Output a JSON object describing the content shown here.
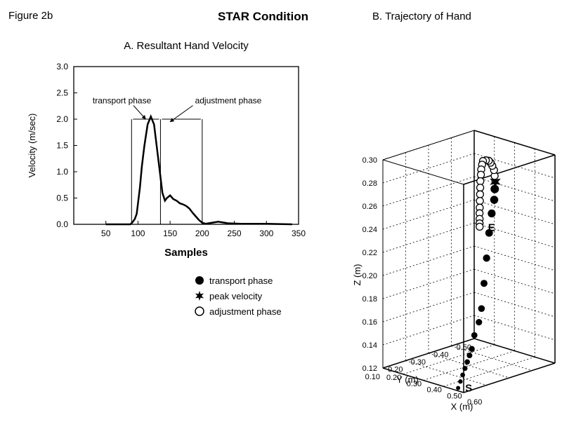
{
  "figure_label": "Figure 2b",
  "main_title": "STAR Condition",
  "panelA": {
    "type": "line",
    "title": "A. Resultant Hand Velocity",
    "title_fontsize": 15,
    "xlabel": "Samples",
    "ylabel": "Velocity (m/sec)",
    "label_fontsize": 13,
    "tick_fontsize": 12,
    "xlim": [
      0,
      350
    ],
    "ylim": [
      0,
      3.0
    ],
    "xtick_step": 50,
    "ytick_step": 0.5,
    "line_color": "#000000",
    "line_width": 2.5,
    "background_color": "#ffffff",
    "axis_color": "#000000",
    "phase_lines_x": [
      90,
      135,
      200
    ],
    "phase_line_color": "#000000",
    "phase_line_width": 1,
    "annotations": {
      "transport": {
        "text": "transport phase",
        "x_text": 75,
        "y_text": 2.3,
        "arrow_to_x": 112,
        "arrow_to_y": 2.0
      },
      "adjustment": {
        "text": "adjustment phase",
        "x_text": 180,
        "y_text": 2.3,
        "arrow_to_x": 150,
        "arrow_to_y": 1.95
      }
    },
    "samples_x": [
      50,
      70,
      80,
      85,
      88,
      90,
      92,
      95,
      98,
      100,
      103,
      106,
      110,
      115,
      120,
      125,
      128,
      132,
      135,
      138,
      142,
      145,
      150,
      155,
      160,
      165,
      170,
      175,
      180,
      185,
      190,
      195,
      200,
      205,
      210,
      215,
      220,
      225,
      230,
      240,
      260,
      280,
      300,
      320,
      340
    ],
    "velocity_y": [
      0,
      0,
      0,
      0,
      0,
      0.02,
      0.05,
      0.1,
      0.2,
      0.4,
      0.7,
      1.1,
      1.5,
      1.9,
      2.05,
      1.9,
      1.6,
      1.2,
      0.9,
      0.6,
      0.45,
      0.5,
      0.55,
      0.48,
      0.45,
      0.4,
      0.38,
      0.35,
      0.3,
      0.22,
      0.15,
      0.08,
      0.03,
      0.01,
      0.02,
      0.03,
      0.04,
      0.05,
      0.04,
      0.02,
      0.01,
      0.01,
      0.01,
      0.005,
      0
    ]
  },
  "legend": {
    "items": [
      {
        "label": "transport phase",
        "marker": "filled-circle"
      },
      {
        "label": "peak velocity",
        "marker": "star"
      },
      {
        "label": "adjustment phase",
        "marker": "open-circle"
      }
    ],
    "fontsize": 13,
    "marker_color": "#000000"
  },
  "panelB": {
    "type": "scatter-3d",
    "title": "B. Trajectory of Hand",
    "title_fontsize": 15,
    "axis_x": {
      "label": "X (m)",
      "min": 0.2,
      "max": 0.6,
      "step": 0.1,
      "fontsize": 12
    },
    "axis_y": {
      "label": "Y (m)",
      "min": 0.1,
      "max": 0.5,
      "step": 0.1,
      "fontsize": 12
    },
    "axis_z": {
      "label": "Z (m)",
      "min": 0.12,
      "max": 0.3,
      "step": 0.02,
      "fontsize": 12
    },
    "grid_color": "#000000",
    "grid_dash": "2,3",
    "start_label": "S",
    "end_label": "E",
    "label_fontsize": 15,
    "trajectory": {
      "transport": {
        "marker": "filled-circle",
        "color": "#000000",
        "size_start": 3,
        "size_end": 6,
        "points": [
          [
            0.55,
            0.12,
            0.12
          ],
          [
            0.55,
            0.13,
            0.125
          ],
          [
            0.55,
            0.14,
            0.13
          ],
          [
            0.55,
            0.15,
            0.135
          ],
          [
            0.55,
            0.16,
            0.14
          ],
          [
            0.55,
            0.17,
            0.145
          ],
          [
            0.55,
            0.18,
            0.15
          ],
          [
            0.54,
            0.2,
            0.16
          ],
          [
            0.54,
            0.22,
            0.17
          ],
          [
            0.53,
            0.24,
            0.18
          ],
          [
            0.52,
            0.26,
            0.2
          ],
          [
            0.51,
            0.28,
            0.22
          ],
          [
            0.5,
            0.3,
            0.24
          ],
          [
            0.49,
            0.32,
            0.255
          ],
          [
            0.48,
            0.34,
            0.265
          ],
          [
            0.46,
            0.36,
            0.272
          ]
        ]
      },
      "peak": {
        "marker": "star",
        "color": "#000000",
        "size": 9,
        "point": [
          0.44,
          0.38,
          0.276
        ]
      },
      "adjustment": {
        "marker": "open-circle",
        "color": "#000000",
        "size": 5,
        "points": [
          [
            0.42,
            0.395,
            0.279
          ],
          [
            0.4,
            0.41,
            0.282
          ],
          [
            0.38,
            0.42,
            0.284
          ],
          [
            0.36,
            0.43,
            0.285
          ],
          [
            0.34,
            0.44,
            0.285
          ],
          [
            0.32,
            0.445,
            0.284
          ],
          [
            0.3,
            0.45,
            0.282
          ],
          [
            0.29,
            0.455,
            0.278
          ],
          [
            0.28,
            0.46,
            0.273
          ],
          [
            0.275,
            0.463,
            0.268
          ],
          [
            0.27,
            0.465,
            0.262
          ],
          [
            0.266,
            0.468,
            0.256
          ],
          [
            0.263,
            0.47,
            0.25
          ],
          [
            0.26,
            0.472,
            0.244
          ],
          [
            0.258,
            0.473,
            0.238
          ],
          [
            0.256,
            0.474,
            0.233
          ],
          [
            0.255,
            0.475,
            0.228
          ],
          [
            0.254,
            0.476,
            0.224
          ],
          [
            0.253,
            0.477,
            0.221
          ]
        ]
      }
    }
  }
}
